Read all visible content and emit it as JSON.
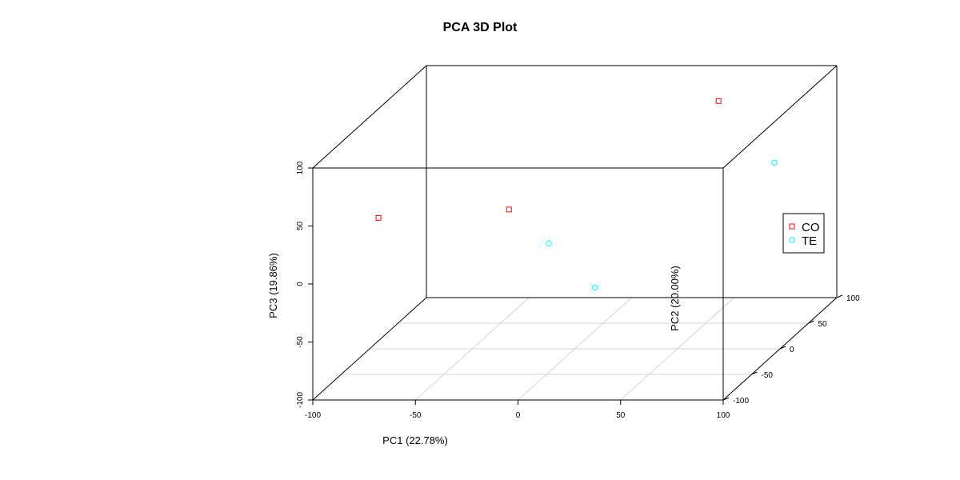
{
  "chart_data": {
    "type": "scatter",
    "projection": "3d",
    "title": "PCA 3D Plot",
    "xlabel": "PC1 (22.78%)",
    "ylabel": "PC2 (20.00%)",
    "zlabel": "PC3 (19.86%)",
    "xlim": [
      -100,
      100
    ],
    "ylim": [
      -100,
      100
    ],
    "zlim": [
      -100,
      100
    ],
    "xticks": [
      "-100",
      "-50",
      "0",
      "50",
      "100"
    ],
    "yticks": [
      "-100",
      "-50",
      "0",
      "50",
      "100"
    ],
    "zticks": [
      "-100",
      "-50",
      "0",
      "50",
      "100"
    ],
    "floor_grid": true,
    "legend_position": "right",
    "series": [
      {
        "name": "CO",
        "color": "#ff0000",
        "marker": "square",
        "points": [
          {
            "x": -68,
            "y": -100,
            "z": 57
          },
          {
            "x": -34,
            "y": 7,
            "z": 17
          },
          {
            "x": 54,
            "y": 58,
            "z": 88
          }
        ]
      },
      {
        "name": "TE",
        "color": "#00ffff",
        "marker": "circle",
        "points": [
          {
            "x": 15,
            "y": -100,
            "z": 35
          },
          {
            "x": 18,
            "y": -30,
            "z": -34
          },
          {
            "x": 100,
            "y": -10,
            "z": 65
          }
        ]
      }
    ]
  }
}
